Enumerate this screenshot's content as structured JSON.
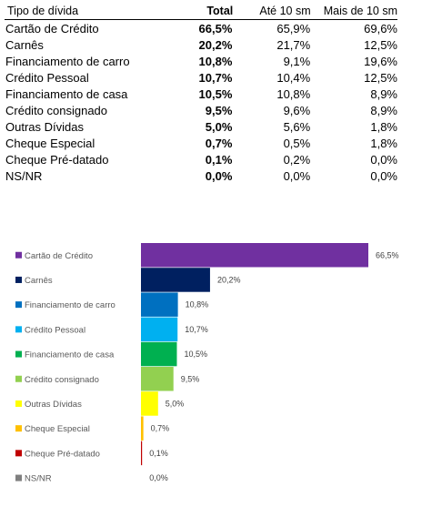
{
  "table": {
    "headers": [
      "Tipo  de dívida",
      "Total",
      "Até 10 sm",
      "Mais de 10 sm"
    ],
    "rows": [
      [
        "Cartão de Crédito",
        "66,5%",
        "65,9%",
        "69,6%"
      ],
      [
        "Carnês",
        "20,2%",
        "21,7%",
        "12,5%"
      ],
      [
        "Financiamento de carro",
        "10,8%",
        "9,1%",
        "19,6%"
      ],
      [
        "Crédito Pessoal",
        "10,7%",
        "10,4%",
        "12,5%"
      ],
      [
        "Financiamento de casa",
        "10,5%",
        "10,8%",
        "8,9%"
      ],
      [
        "Crédito consignado",
        "9,5%",
        "9,6%",
        "8,9%"
      ],
      [
        "Outras Dívidas",
        "5,0%",
        "5,6%",
        "1,8%"
      ],
      [
        "Cheque Especial",
        "0,7%",
        "0,5%",
        "1,8%"
      ],
      [
        "Cheque Pré-datado",
        "0,1%",
        "0,2%",
        "0,0%"
      ],
      [
        "NS/NR",
        "0,0%",
        "0,0%",
        "0,0%"
      ]
    ]
  },
  "chart_data": {
    "type": "bar",
    "orientation": "horizontal",
    "categories": [
      "Cartão de Crédito",
      "Carnês",
      "Financiamento de carro",
      "Crédito Pessoal",
      "Financiamento de casa",
      "Crédito consignado",
      "Outras Dívidas",
      "Cheque Especial",
      "Cheque Pré-datado",
      "NS/NR"
    ],
    "values": [
      66.5,
      20.2,
      10.8,
      10.7,
      10.5,
      9.5,
      5.0,
      0.7,
      0.1,
      0.0
    ],
    "value_labels": [
      "66,5%",
      "20,2%",
      "10,8%",
      "10,7%",
      "10,5%",
      "9,5%",
      "5,0%",
      "0,7%",
      "0,1%",
      "0,0%"
    ],
    "colors": [
      "#7030a0",
      "#002060",
      "#0070c0",
      "#00b0f0",
      "#00b050",
      "#92d050",
      "#ffff00",
      "#ffc000",
      "#c00000",
      "#7f7f7f"
    ],
    "legend": "left",
    "grid": false,
    "xlim": [
      0,
      66.5
    ]
  }
}
